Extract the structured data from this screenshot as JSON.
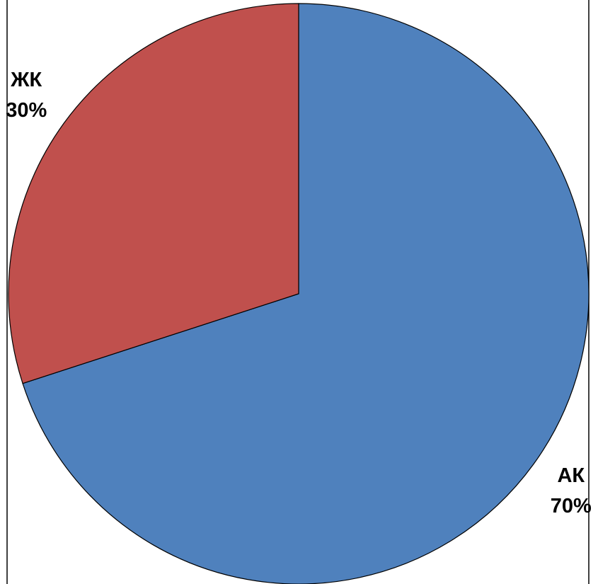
{
  "chart_data": {
    "type": "pie",
    "categories": [
      "АК",
      "ЖК"
    ],
    "values": [
      70,
      30
    ],
    "value_labels": [
      "70%",
      "30%"
    ],
    "colors": [
      "#4f81bd",
      "#c0504d"
    ]
  }
}
